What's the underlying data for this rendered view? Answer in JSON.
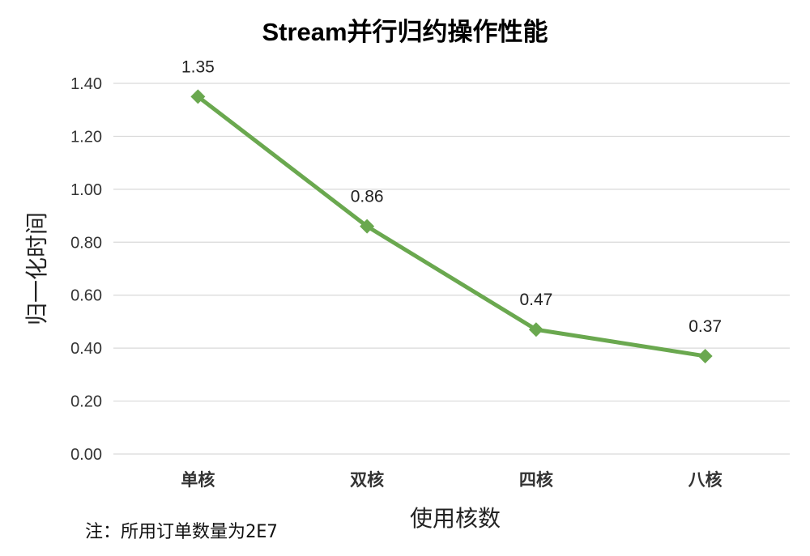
{
  "chart_data": {
    "type": "line",
    "title": "Stream并行归约操作性能",
    "xlabel": "使用核数",
    "ylabel": "归一化时间",
    "categories": [
      "单核",
      "双核",
      "四核",
      "八核"
    ],
    "series": [
      {
        "values": [
          1.35,
          0.86,
          0.47,
          0.37
        ],
        "data_labels": [
          "1.35",
          "0.86",
          "0.47",
          "0.37"
        ],
        "color": "#6aa84f",
        "marker": "diamond"
      }
    ],
    "ylim": [
      0,
      1.4
    ],
    "yticks": [
      "0.00",
      "0.20",
      "0.40",
      "0.60",
      "0.80",
      "1.00",
      "1.20",
      "1.40"
    ],
    "grid": true,
    "legend": "none",
    "annotation": "注：所用订单数量为2E7"
  }
}
